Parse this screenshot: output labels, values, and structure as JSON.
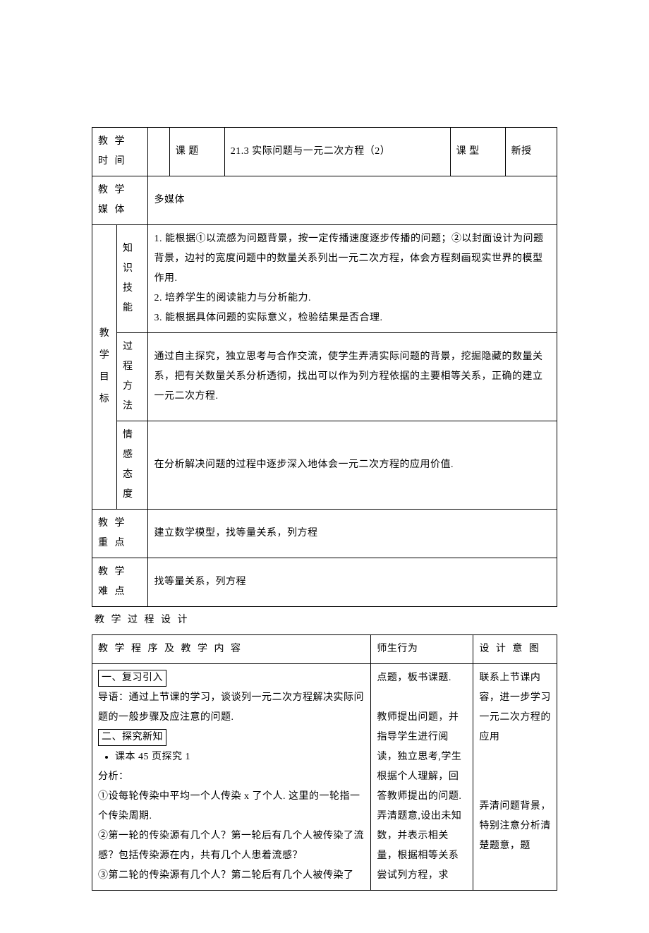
{
  "colors": {
    "text": "#000000",
    "background": "#ffffff",
    "border": "#000000"
  },
  "typography": {
    "font_family": "SimSun",
    "body_fontsize_pt": 11,
    "line_height": 2.0
  },
  "table1": {
    "rows": {
      "time": {
        "label": "教 学 时 间",
        "value": ""
      },
      "topic": {
        "label": "课 题",
        "value": "21.3 实际问题与一元二次方程（2）"
      },
      "ctype": {
        "label": "课 型",
        "value": "新授"
      },
      "media": {
        "label": "教 学 媒 体",
        "value": "多媒体"
      },
      "goals_label": "教\n学\n目\n标",
      "knowledge": {
        "label": "知 识\n技 能",
        "lines": [
          "1. 能根据①以流感为问题背景，按一定传播速度逐步传播的问题；②以封面设计为问题背景，边衬的宽度问题中的数量关系列出一元二次方程，体会方程刻画现实世界的模型作用.",
          "2. 培养学生的阅读能力与分析能力.",
          "3. 能根据具体问题的实际意义，检验结果是否合理."
        ]
      },
      "process": {
        "label": "过 程\n方 法",
        "value": "通过自主探究，独立思考与合作交流，使学生弄清实际问题的背景，挖掘隐藏的数量关系，把有关数量关系分析透彻，找出可以作为列方程依据的主要相等关系，正确的建立一元二次方程."
      },
      "emotion": {
        "label": "情 感\n态 度",
        "value": "在分析解决问题的过程中逐步深入地体会一元二次方程的应用价值."
      },
      "keypoint": {
        "label": "教 学 重 点",
        "value": "建立数学模型，找等量关系，列方程"
      },
      "difficulty": {
        "label": "教 学 难 点",
        "value": "找等量关系，列方程"
      }
    }
  },
  "between_caption": "教 学 过 程 设 计",
  "table2": {
    "headers": {
      "program": "教 学 程 序 及 教 学 内 容",
      "behavior": "师生行为",
      "intent": "设 计 意 图"
    },
    "program": {
      "section1_title": "一、复习引入",
      "section1_body": "导语：通过上节课的学习，谈谈列一元二次方程解决实际问题的一般步骤及应注意的问题.",
      "section2_title": "二、探究新知",
      "bullet1": "课本 45 页探究 1",
      "analysis_label": "分析：",
      "l1": "①设每轮传染中平均一个人传染 x 了个人. 这里的一轮指一个传染周期.",
      "l2": "②第一轮的传染源有几个人？第一轮后有几个人被传染了流感？包括传染源在内，共有几个人患着流感？",
      "l3": "③第二轮的传染源有几个人？第二轮后有几个人被传染了"
    },
    "behavior": {
      "b1": "点题，板书课题.",
      "b2": "教师提出问题，并指导学生进行阅读，独立思考,学生根据个人理解，回答教师提出的问题.",
      "b3": "弄清题意,设出未知数，并表示相关量，根据相等关系尝试列方程，求"
    },
    "intent": {
      "i1": "联系上节课内容，进一步学习一元二次方程的应用",
      "i2": "弄清问题背景，特别注意分析清楚题意，题"
    }
  }
}
